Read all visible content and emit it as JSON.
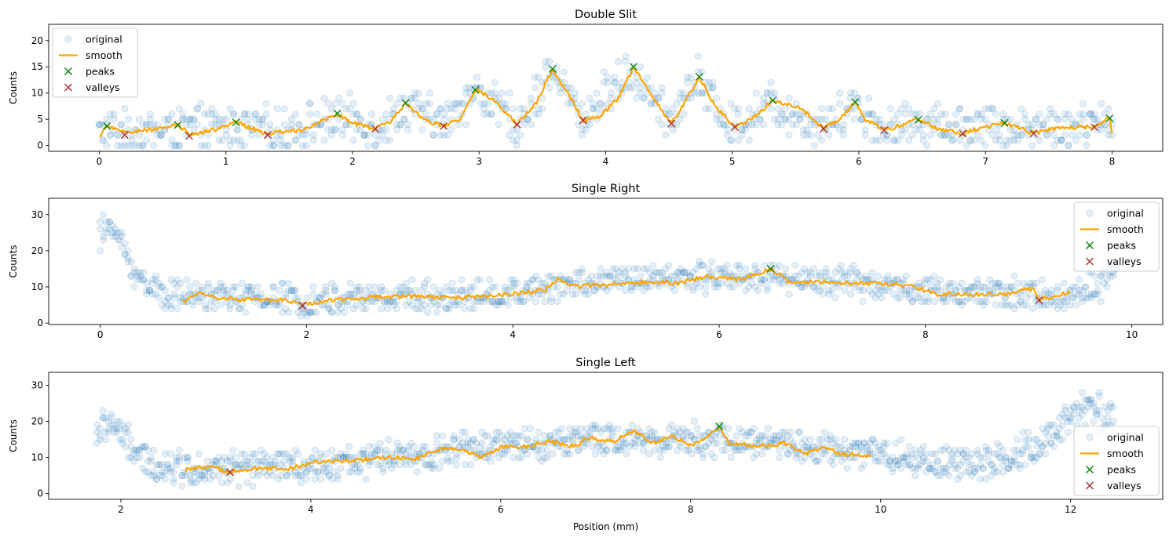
{
  "figure": {
    "xlabel_bottom": "Position (mm)"
  },
  "chart_data": [
    {
      "type": "scatter",
      "title": "Double Slit",
      "xlabel": "",
      "ylabel": "Counts",
      "xlim": [
        -0.4,
        8.4
      ],
      "ylim": [
        -1.1,
        23.1
      ],
      "xticks": [
        0,
        1,
        2,
        3,
        4,
        5,
        6,
        7,
        8
      ],
      "yticks": [
        0,
        5,
        10,
        15,
        20
      ],
      "legend_position": "upper-left",
      "legend": [
        "original",
        "smooth",
        "peaks",
        "valleys"
      ],
      "original": {
        "x_start": 0.0,
        "x_end": 8.0,
        "count": 280,
        "noise": 4.5,
        "ymin": 0,
        "ymax": 22,
        "envelope": [
          [
            0,
            2.5
          ],
          [
            0.5,
            3
          ],
          [
            1,
            3.5
          ],
          [
            1.5,
            3
          ],
          [
            1.9,
            5.5
          ],
          [
            2.2,
            3.5
          ],
          [
            2.45,
            7.5
          ],
          [
            2.7,
            4
          ],
          [
            2.97,
            10.5
          ],
          [
            3.3,
            4
          ],
          [
            3.58,
            14
          ],
          [
            3.82,
            5
          ],
          [
            4.2,
            14.5
          ],
          [
            4.5,
            4.5
          ],
          [
            4.72,
            12.5
          ],
          [
            5.0,
            3.5
          ],
          [
            5.32,
            8
          ],
          [
            5.7,
            3.5
          ],
          [
            5.95,
            8
          ],
          [
            6.2,
            3
          ],
          [
            6.5,
            4.5
          ],
          [
            7,
            3.5
          ],
          [
            7.5,
            3.5
          ],
          [
            8,
            4
          ]
        ]
      },
      "smooth": {
        "x_start": 0.0,
        "x_end": 8.0,
        "points": [
          [
            0,
            1.5
          ],
          [
            0.05,
            3.7
          ],
          [
            0.2,
            2.5
          ],
          [
            0.4,
            3
          ],
          [
            0.62,
            3.9
          ],
          [
            0.72,
            2
          ],
          [
            0.9,
            3
          ],
          [
            1.08,
            4.4
          ],
          [
            1.33,
            2.2
          ],
          [
            1.6,
            3
          ],
          [
            1.88,
            6.1
          ],
          [
            2.0,
            4.3
          ],
          [
            2.18,
            3.2
          ],
          [
            2.3,
            4.5
          ],
          [
            2.42,
            8.1
          ],
          [
            2.55,
            5
          ],
          [
            2.72,
            3.7
          ],
          [
            2.85,
            5
          ],
          [
            2.97,
            10.6
          ],
          [
            3.1,
            9
          ],
          [
            3.3,
            4
          ],
          [
            3.45,
            8
          ],
          [
            3.58,
            14.6
          ],
          [
            3.7,
            10
          ],
          [
            3.82,
            4.8
          ],
          [
            3.95,
            5.5
          ],
          [
            4.1,
            9
          ],
          [
            4.22,
            15
          ],
          [
            4.35,
            10
          ],
          [
            4.52,
            4.2
          ],
          [
            4.62,
            8
          ],
          [
            4.74,
            13.1
          ],
          [
            4.85,
            8
          ],
          [
            5.02,
            3.5
          ],
          [
            5.15,
            5
          ],
          [
            5.32,
            8.6
          ],
          [
            5.55,
            7
          ],
          [
            5.72,
            3.2
          ],
          [
            5.85,
            5
          ],
          [
            5.97,
            8.3
          ],
          [
            6.05,
            5
          ],
          [
            6.2,
            2.9
          ],
          [
            6.35,
            4
          ],
          [
            6.47,
            4.9
          ],
          [
            6.65,
            3
          ],
          [
            6.82,
            2.3
          ],
          [
            7.0,
            3.5
          ],
          [
            7.15,
            4.3
          ],
          [
            7.38,
            2.3
          ],
          [
            7.6,
            3.5
          ],
          [
            7.86,
            3.5
          ],
          [
            7.98,
            5.2
          ],
          [
            8.0,
            2.5
          ]
        ]
      },
      "peaks": [
        [
          0.06,
          3.7
        ],
        [
          0.62,
          3.9
        ],
        [
          1.08,
          4.4
        ],
        [
          1.88,
          6.1
        ],
        [
          2.42,
          8.1
        ],
        [
          2.97,
          10.6
        ],
        [
          3.58,
          14.6
        ],
        [
          4.22,
          15.0
        ],
        [
          4.74,
          13.1
        ],
        [
          5.32,
          8.6
        ],
        [
          5.97,
          8.3
        ],
        [
          6.47,
          4.9
        ],
        [
          7.15,
          4.3
        ],
        [
          7.98,
          5.2
        ]
      ],
      "valleys": [
        [
          0.2,
          2.0
        ],
        [
          0.71,
          1.8
        ],
        [
          1.33,
          2.0
        ],
        [
          2.18,
          3.2
        ],
        [
          2.72,
          3.7
        ],
        [
          3.3,
          4.0
        ],
        [
          3.82,
          4.8
        ],
        [
          4.52,
          4.2
        ],
        [
          5.02,
          3.5
        ],
        [
          5.72,
          3.2
        ],
        [
          6.2,
          2.9
        ],
        [
          6.82,
          2.3
        ],
        [
          7.38,
          2.3
        ],
        [
          7.86,
          3.5
        ]
      ]
    },
    {
      "type": "scatter",
      "title": "Single Right",
      "xlabel": "",
      "ylabel": "Counts",
      "xlim": [
        -0.5,
        10.3
      ],
      "ylim": [
        -0.4,
        34.5
      ],
      "xticks": [
        0,
        2,
        4,
        6,
        8,
        10
      ],
      "yticks": [
        0,
        10,
        20,
        30
      ],
      "legend_position": "upper-right",
      "legend": [
        "original",
        "smooth",
        "peaks",
        "valleys"
      ],
      "original": {
        "x_start": 0.0,
        "x_end": 9.85,
        "count": 330,
        "noise": 4.5,
        "ymin": 1,
        "ymax": 33,
        "envelope": [
          [
            0,
            24
          ],
          [
            0.1,
            28
          ],
          [
            0.2,
            22
          ],
          [
            0.35,
            13
          ],
          [
            0.6,
            8
          ],
          [
            1,
            7.5
          ],
          [
            2,
            6.5
          ],
          [
            3,
            7.5
          ],
          [
            4,
            8
          ],
          [
            4.5,
            11
          ],
          [
            5,
            11.5
          ],
          [
            6,
            13
          ],
          [
            6.5,
            13
          ],
          [
            7,
            11.5
          ],
          [
            7.5,
            11
          ],
          [
            8,
            9
          ],
          [
            8.5,
            8
          ],
          [
            9,
            8
          ],
          [
            9.3,
            7
          ],
          [
            9.6,
            9
          ],
          [
            9.85,
            14
          ]
        ]
      },
      "smooth": {
        "x_start": 0.8,
        "x_end": 9.4,
        "points": [
          [
            0.8,
            6
          ],
          [
            0.95,
            8.5
          ],
          [
            1.1,
            7
          ],
          [
            1.5,
            6.5
          ],
          [
            1.8,
            6.5
          ],
          [
            1.96,
            5
          ],
          [
            2.2,
            6.2
          ],
          [
            2.6,
            7
          ],
          [
            3,
            7.5
          ],
          [
            3.5,
            7
          ],
          [
            4,
            8
          ],
          [
            4.3,
            9
          ],
          [
            4.45,
            12.5
          ],
          [
            4.6,
            10
          ],
          [
            5,
            11
          ],
          [
            5.3,
            11.5
          ],
          [
            5.6,
            11
          ],
          [
            5.9,
            13
          ],
          [
            6.2,
            12
          ],
          [
            6.5,
            15
          ],
          [
            6.7,
            11
          ],
          [
            7,
            11.5
          ],
          [
            7.3,
            11
          ],
          [
            7.6,
            11
          ],
          [
            7.9,
            10
          ],
          [
            8.1,
            8
          ],
          [
            8.5,
            8
          ],
          [
            8.8,
            8
          ],
          [
            9.05,
            9.5
          ],
          [
            9.1,
            6.5
          ],
          [
            9.4,
            8.5
          ]
        ]
      },
      "peaks": [
        [
          6.5,
          15.0
        ]
      ],
      "valleys": [
        [
          1.96,
          4.8
        ],
        [
          9.1,
          6.3
        ]
      ]
    },
    {
      "type": "scatter",
      "title": "Single Left",
      "xlabel": "Position (mm)",
      "ylabel": "Counts",
      "xlim": [
        1.24,
        12.97
      ],
      "ylim": [
        -1.6,
        33.6
      ],
      "xticks": [
        2,
        4,
        6,
        8,
        10,
        12
      ],
      "yticks": [
        0,
        10,
        20,
        30
      ],
      "legend_position": "lower-right",
      "legend": [
        "original",
        "smooth",
        "peaks",
        "valleys"
      ],
      "original": {
        "x_start": 1.75,
        "x_end": 12.45,
        "count": 360,
        "noise": 5,
        "ymin": 0,
        "ymax": 32,
        "envelope": [
          [
            1.75,
            17
          ],
          [
            1.9,
            20
          ],
          [
            2.1,
            13
          ],
          [
            2.3,
            8
          ],
          [
            2.8,
            7
          ],
          [
            3.5,
            7
          ],
          [
            4,
            8
          ],
          [
            5,
            10
          ],
          [
            5.5,
            12
          ],
          [
            6,
            13
          ],
          [
            6.5,
            14
          ],
          [
            7,
            15
          ],
          [
            7.5,
            15
          ],
          [
            8,
            15
          ],
          [
            8.5,
            14
          ],
          [
            9,
            14
          ],
          [
            9.5,
            12
          ],
          [
            10,
            11
          ],
          [
            10.5,
            9
          ],
          [
            11,
            8
          ],
          [
            11.3,
            9
          ],
          [
            11.6,
            13
          ],
          [
            12,
            20
          ],
          [
            12.2,
            24
          ],
          [
            12.45,
            21
          ]
        ]
      },
      "smooth": {
        "x_start": 2.68,
        "x_end": 9.9,
        "points": [
          [
            2.68,
            6.5
          ],
          [
            2.9,
            7.5
          ],
          [
            3.15,
            6
          ],
          [
            3.4,
            7
          ],
          [
            3.8,
            7
          ],
          [
            4.0,
            8.5
          ],
          [
            4.3,
            9
          ],
          [
            4.6,
            9.5
          ],
          [
            4.9,
            10
          ],
          [
            5.1,
            9.5
          ],
          [
            5.4,
            12.5
          ],
          [
            5.6,
            12
          ],
          [
            5.8,
            10
          ],
          [
            6.0,
            13
          ],
          [
            6.3,
            13
          ],
          [
            6.5,
            14.5
          ],
          [
            6.8,
            13
          ],
          [
            6.9,
            15.5
          ],
          [
            7.2,
            14.5
          ],
          [
            7.4,
            17.5
          ],
          [
            7.6,
            14
          ],
          [
            7.8,
            16
          ],
          [
            8.0,
            13.5
          ],
          [
            8.15,
            15
          ],
          [
            8.3,
            18.6
          ],
          [
            8.4,
            14
          ],
          [
            8.7,
            13
          ],
          [
            9.0,
            14
          ],
          [
            9.2,
            11
          ],
          [
            9.4,
            13
          ],
          [
            9.6,
            11
          ],
          [
            9.9,
            10.5
          ]
        ]
      },
      "peaks": [
        [
          8.3,
          18.6
        ]
      ],
      "valleys": [
        [
          3.15,
          5.9
        ]
      ]
    }
  ],
  "colors": {
    "original": "#1f77b4",
    "smooth": "#ffa500",
    "peaks": "#008000",
    "valleys": "#a52a2a"
  }
}
